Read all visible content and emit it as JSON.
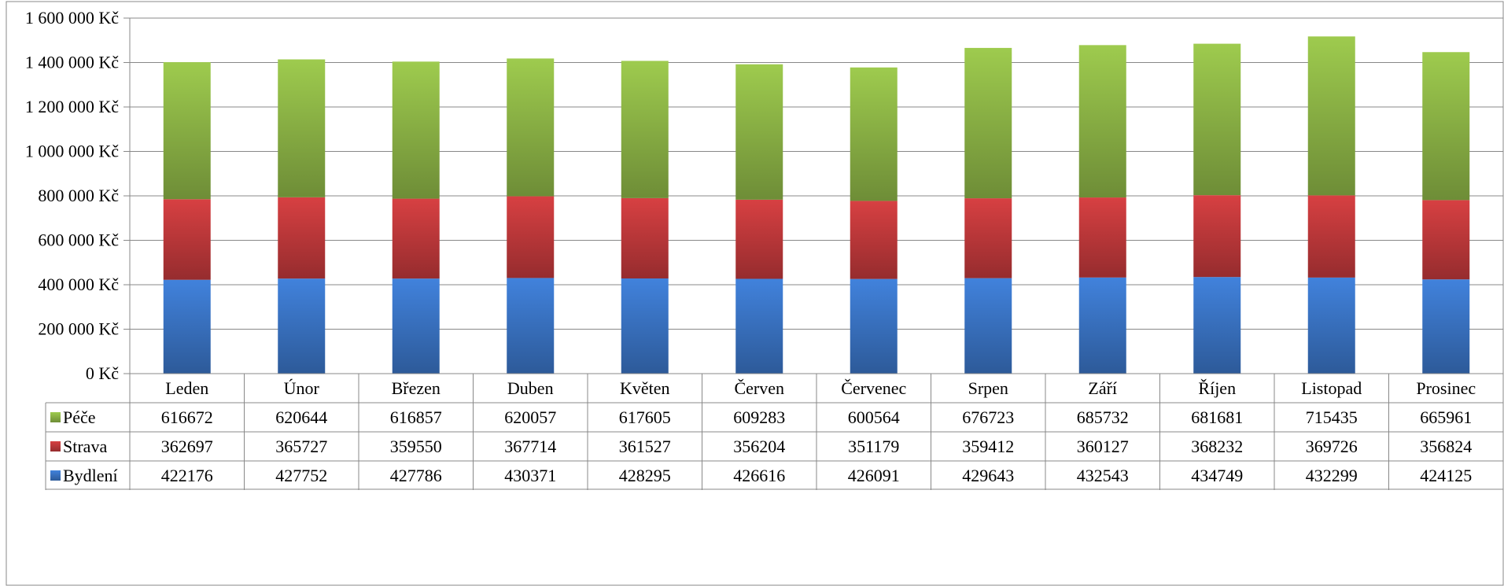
{
  "chart_data": {
    "type": "bar",
    "stacked": true,
    "categories": [
      "Leden",
      "Únor",
      "Březen",
      "Duben",
      "Květen",
      "Červen",
      "Červenec",
      "Srpen",
      "Září",
      "Říjen",
      "Listopad",
      "Prosinec"
    ],
    "series": [
      {
        "name": "Bydlení",
        "color": "#3a74c4",
        "values": [
          422176,
          427752,
          427786,
          430371,
          428295,
          426616,
          426091,
          429643,
          432543,
          434749,
          432299,
          424125
        ]
      },
      {
        "name": "Strava",
        "color": "#c0393b",
        "values": [
          362697,
          365727,
          359550,
          367714,
          361527,
          356204,
          351179,
          359412,
          360127,
          368232,
          369726,
          356824
        ]
      },
      {
        "name": "Péče",
        "color": "#8db546",
        "values": [
          616672,
          620644,
          616857,
          620057,
          617605,
          609283,
          600564,
          676723,
          685732,
          681681,
          715435,
          665961
        ]
      }
    ],
    "table_row_order": [
      "Péče",
      "Strava",
      "Bydlení"
    ],
    "y_ticks": [
      "0 Kč",
      "200 000 Kč",
      "400 000 Kč",
      "600 000 Kč",
      "800 000 Kč",
      "1 000 000 Kč",
      "1 200 000 Kč",
      "1 400 000 Kč",
      "1 600 000 Kč"
    ],
    "ylim": [
      0,
      1600000
    ],
    "grid": true,
    "legend": "data-table"
  }
}
